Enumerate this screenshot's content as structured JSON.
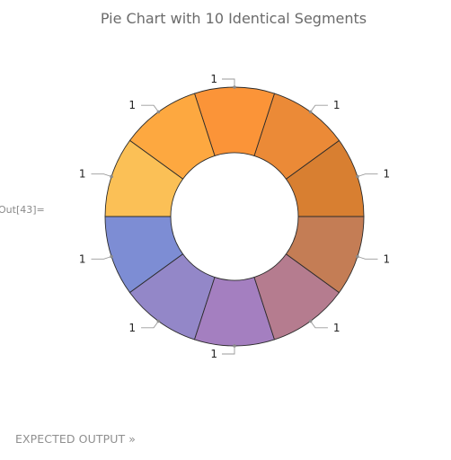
{
  "notebook": {
    "out_label": "Out[43]=",
    "expected_output_label": "EXPECTED OUTPUT »"
  },
  "chart_data": {
    "type": "pie",
    "style": "donut",
    "title": "Pie Chart with 10 Identical Segments",
    "categories": [
      "1",
      "1",
      "1",
      "1",
      "1",
      "1",
      "1",
      "1",
      "1",
      "1"
    ],
    "values": [
      1,
      1,
      1,
      1,
      1,
      1,
      1,
      1,
      1,
      1
    ],
    "data_labels": [
      "1",
      "1",
      "1",
      "1",
      "1",
      "1",
      "1",
      "1",
      "1",
      "1"
    ],
    "colors": [
      "#d87f31",
      "#eb8a37",
      "#fb9438",
      "#fda840",
      "#fbc056",
      "#7d8dd4",
      "#9387c8",
      "#a47fc0",
      "#b57c8f",
      "#c47d55"
    ]
  }
}
